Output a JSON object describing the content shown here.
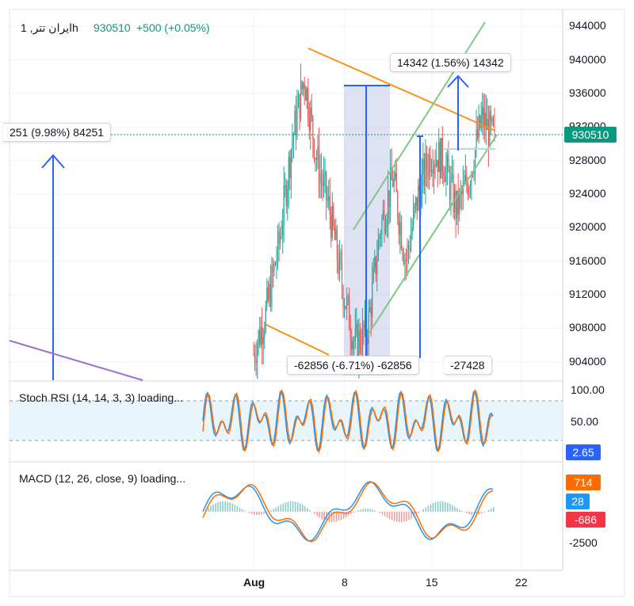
{
  "header": {
    "symbol": "ایران تتر, 1h",
    "price": "930510",
    "change": "+500 (+0.05%)"
  },
  "colors": {
    "up": "#26a69a",
    "down": "#ef5350",
    "trend_orange": "#f7931a",
    "channel_green": "#81c784",
    "measure_blue": "#2962ff",
    "purple_line": "#9575cd",
    "stoch_k": "#2196f3",
    "stoch_d": "#ff6d00",
    "price_tag": "#089981",
    "rsi_tag": "#2962ff",
    "macd_tag": "#ff6d00",
    "signal_tag": "#2196f3",
    "hist_tag": "#f23645"
  },
  "annotations": {
    "left_callout": "251 (9.98%) 84251",
    "top_callout": "14342 (1.56%) 14342",
    "bottom_callout": "-62856 (-6.71%) -62856",
    "bottom_callout_2": "-27428"
  },
  "indicators": {
    "stoch": {
      "label": "Stoch RSI (14, 14, 3, 3) loading...",
      "value": "2.65"
    },
    "macd": {
      "label": "MACD (12, 26, close, 9) loading...",
      "v1": "714",
      "v2": "28",
      "v3": "-686",
      "v4": "-2500"
    }
  },
  "chart_data": [
    {
      "type": "candlestick",
      "y_ticks": [
        944000,
        940000,
        936000,
        932000,
        928000,
        924000,
        920000,
        916000,
        912000,
        908000,
        904000
      ],
      "ylim": [
        902000,
        946000
      ],
      "x_ticks": [
        "Aug",
        "8",
        "15",
        "22"
      ],
      "last_price": 930510,
      "approx_close_path": [
        {
          "x": "Aug 1",
          "y": 905000
        },
        {
          "x": "Aug 2",
          "y": 910000
        },
        {
          "x": "Aug 3",
          "y": 918000
        },
        {
          "x": "Aug 4",
          "y": 930000
        },
        {
          "x": "Aug 5",
          "y": 938000
        },
        {
          "x": "Aug 6",
          "y": 928000
        },
        {
          "x": "Aug 7",
          "y": 922000
        },
        {
          "x": "Aug 8",
          "y": 913000
        },
        {
          "x": "Aug 9",
          "y": 906000
        },
        {
          "x": "Aug 10",
          "y": 908000
        },
        {
          "x": "Aug 11",
          "y": 920000
        },
        {
          "x": "Aug 12",
          "y": 926000
        },
        {
          "x": "Aug 13",
          "y": 916000
        },
        {
          "x": "Aug 14",
          "y": 924000
        },
        {
          "x": "Aug 15",
          "y": 929000
        },
        {
          "x": "Aug 16",
          "y": 928000
        },
        {
          "x": "Aug 17",
          "y": 922000
        },
        {
          "x": "Aug 18",
          "y": 926000
        },
        {
          "x": "Aug 19",
          "y": 933000
        },
        {
          "x": "Aug 20",
          "y": 930510
        }
      ]
    },
    {
      "type": "line",
      "y_ticks": [
        "100.00",
        "50.00"
      ],
      "ylim": [
        0,
        100
      ]
    },
    {
      "type": "line",
      "y_ticks": [
        "-2500"
      ]
    }
  ]
}
